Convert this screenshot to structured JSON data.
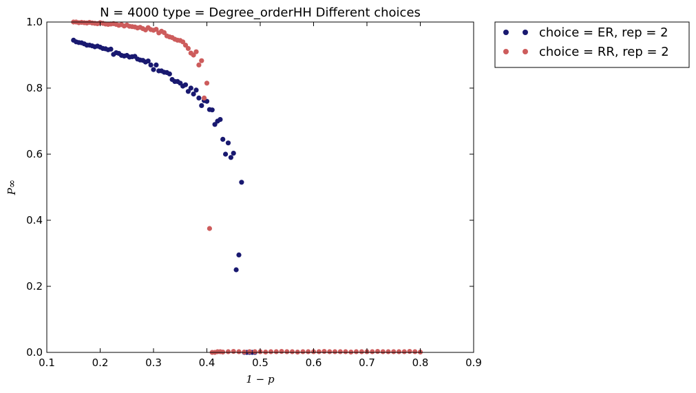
{
  "chart_data": {
    "type": "scatter",
    "title": "N = 4000 type = Degree_orderHH Different choices",
    "xlabel": "1 − p",
    "ylabel": "P∞",
    "xlim": [
      0.1,
      0.9
    ],
    "ylim": [
      0.0,
      1.0
    ],
    "xticks": [
      "0.1",
      "0.2",
      "0.3",
      "0.4",
      "0.5",
      "0.6",
      "0.7",
      "0.8",
      "0.9"
    ],
    "yticks": [
      "0.0",
      "0.2",
      "0.4",
      "0.6",
      "0.8",
      "1.0"
    ],
    "grid": false,
    "legend_position": "outside-top-right",
    "series": [
      {
        "name": "choice = ER, rep = 2",
        "color": "#191970",
        "x": [
          0.15,
          0.155,
          0.16,
          0.165,
          0.17,
          0.175,
          0.18,
          0.185,
          0.19,
          0.195,
          0.2,
          0.205,
          0.21,
          0.215,
          0.22,
          0.225,
          0.23,
          0.235,
          0.24,
          0.245,
          0.25,
          0.255,
          0.26,
          0.265,
          0.27,
          0.275,
          0.28,
          0.285,
          0.29,
          0.295,
          0.3,
          0.305,
          0.31,
          0.315,
          0.32,
          0.325,
          0.33,
          0.335,
          0.34,
          0.345,
          0.35,
          0.355,
          0.36,
          0.365,
          0.37,
          0.375,
          0.38,
          0.385,
          0.39,
          0.395,
          0.4,
          0.405,
          0.41,
          0.415,
          0.42,
          0.425,
          0.43,
          0.435,
          0.44,
          0.445,
          0.45,
          0.455,
          0.46,
          0.465,
          0.47,
          0.475,
          0.48,
          0.485,
          0.49
        ],
        "y": [
          0.945,
          0.94,
          0.938,
          0.937,
          0.934,
          0.93,
          0.93,
          0.928,
          0.925,
          0.927,
          0.924,
          0.92,
          0.919,
          0.916,
          0.918,
          0.902,
          0.907,
          0.905,
          0.899,
          0.897,
          0.899,
          0.894,
          0.895,
          0.896,
          0.888,
          0.885,
          0.884,
          0.879,
          0.882,
          0.87,
          0.856,
          0.87,
          0.852,
          0.852,
          0.848,
          0.847,
          0.843,
          0.826,
          0.82,
          0.82,
          0.815,
          0.806,
          0.81,
          0.79,
          0.8,
          0.782,
          0.794,
          0.77,
          0.747,
          0.762,
          0.76,
          0.735,
          0.734,
          0.69,
          0.7,
          0.705,
          0.645,
          0.6,
          0.634,
          0.59,
          0.603,
          0.25,
          0.295,
          0.515,
          0.0,
          0.0,
          0.0,
          0.0,
          0.0
        ]
      },
      {
        "name": "choice = RR, rep = 2",
        "color": "#cd5c5c",
        "x": [
          0.15,
          0.155,
          0.16,
          0.165,
          0.17,
          0.175,
          0.18,
          0.185,
          0.19,
          0.195,
          0.2,
          0.205,
          0.21,
          0.215,
          0.22,
          0.225,
          0.23,
          0.235,
          0.24,
          0.245,
          0.25,
          0.255,
          0.26,
          0.265,
          0.27,
          0.275,
          0.28,
          0.285,
          0.29,
          0.295,
          0.3,
          0.305,
          0.31,
          0.315,
          0.32,
          0.325,
          0.33,
          0.335,
          0.34,
          0.345,
          0.35,
          0.355,
          0.36,
          0.365,
          0.37,
          0.375,
          0.38,
          0.385,
          0.39,
          0.395,
          0.4,
          0.405,
          0.41,
          0.415,
          0.42,
          0.425,
          0.43,
          0.44,
          0.45,
          0.46,
          0.47,
          0.48,
          0.49,
          0.5,
          0.51,
          0.52,
          0.53,
          0.54,
          0.55,
          0.56,
          0.57,
          0.58,
          0.59,
          0.6,
          0.61,
          0.62,
          0.63,
          0.64,
          0.65,
          0.66,
          0.67,
          0.68,
          0.69,
          0.7,
          0.71,
          0.72,
          0.73,
          0.74,
          0.75,
          0.76,
          0.77,
          0.78,
          0.79,
          0.8
        ],
        "y": [
          1.0,
          1.0,
          0.998,
          0.999,
          0.998,
          0.997,
          0.999,
          0.997,
          0.996,
          0.995,
          0.998,
          0.996,
          0.994,
          0.993,
          0.994,
          0.995,
          0.993,
          0.99,
          0.992,
          0.988,
          0.991,
          0.987,
          0.986,
          0.985,
          0.982,
          0.984,
          0.98,
          0.976,
          0.983,
          0.977,
          0.975,
          0.978,
          0.967,
          0.972,
          0.968,
          0.958,
          0.955,
          0.953,
          0.948,
          0.945,
          0.944,
          0.94,
          0.93,
          0.92,
          0.906,
          0.9,
          0.91,
          0.87,
          0.883,
          0.77,
          0.815,
          0.375,
          0.0,
          0.0,
          0.002,
          0.002,
          0.001,
          0.002,
          0.003,
          0.002,
          0.001,
          0.002,
          0.002,
          0.002,
          0.001,
          0.002,
          0.002,
          0.003,
          0.002,
          0.002,
          0.001,
          0.002,
          0.002,
          0.002,
          0.002,
          0.003,
          0.002,
          0.002,
          0.002,
          0.002,
          0.001,
          0.002,
          0.002,
          0.002,
          0.002,
          0.003,
          0.002,
          0.002,
          0.002,
          0.002,
          0.002,
          0.003,
          0.002,
          0.001
        ]
      }
    ]
  }
}
